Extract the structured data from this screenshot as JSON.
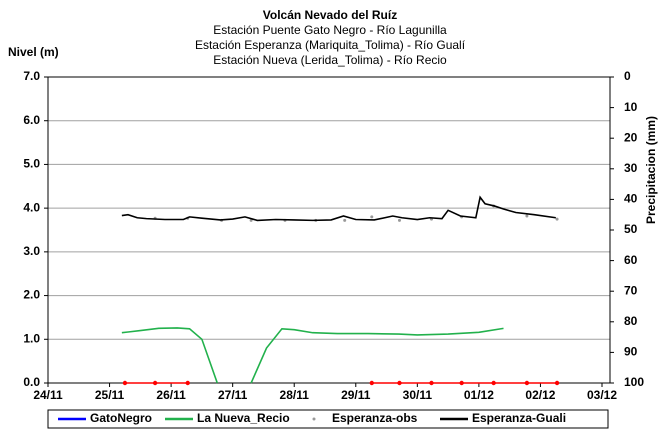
{
  "chart_data": {
    "type": "line",
    "title": "Volcán Nevado del Ruíz",
    "subtitle": [
      "Estación Puente Gato Negro - Río Lagunilla",
      "Estación Esperanza (Mariquita_Tolima) - Río Gualí",
      "Estación Nueva (Lerida_Tolima) - Río Recio"
    ],
    "y_label": "Nivel (m)",
    "y2_label": "Precipitacion (mm)",
    "xlim": [
      0,
      9.13
    ],
    "xticks": [
      {
        "value": 0,
        "label": "24/11"
      },
      {
        "value": 1,
        "label": "25/11"
      },
      {
        "value": 2,
        "label": "26/11"
      },
      {
        "value": 3,
        "label": "27/11"
      },
      {
        "value": 4,
        "label": "28/11"
      },
      {
        "value": 5,
        "label": "29/11"
      },
      {
        "value": 6,
        "label": "30/11"
      },
      {
        "value": 7,
        "label": "01/12"
      },
      {
        "value": 8,
        "label": "02/12"
      },
      {
        "value": 9,
        "label": "03/12"
      }
    ],
    "ylim": [
      0,
      7
    ],
    "yticks": [
      {
        "value": 0,
        "label": "0.0"
      },
      {
        "value": 1,
        "label": "1.0"
      },
      {
        "value": 2,
        "label": "2.0"
      },
      {
        "value": 3,
        "label": "3.0"
      },
      {
        "value": 4,
        "label": "4.0"
      },
      {
        "value": 5,
        "label": "5.0"
      },
      {
        "value": 6,
        "label": "6.0"
      },
      {
        "value": 7,
        "label": "7.0"
      }
    ],
    "y2lim": [
      100,
      0
    ],
    "y2ticks": [
      0,
      10,
      20,
      30,
      40,
      50,
      60,
      70,
      80,
      90,
      100
    ],
    "grid": true,
    "legend": "bottom",
    "series": [
      {
        "name": "GatoNegro",
        "color": "#0000ff",
        "style": "line",
        "x": [],
        "values": []
      },
      {
        "name": "La Nueva_Recio",
        "color": "#22b14c",
        "style": "line",
        "x": [
          1.2,
          1.5,
          1.8,
          2.1,
          2.3,
          2.5,
          2.75,
          null,
          3.3,
          3.55,
          3.8,
          4.0,
          4.3,
          4.7,
          5.2,
          5.7,
          6.0,
          6.5,
          7.0,
          7.4
        ],
        "values": [
          1.15,
          1.2,
          1.25,
          1.26,
          1.24,
          1.0,
          0,
          null,
          0,
          0.8,
          1.24,
          1.22,
          1.15,
          1.13,
          1.13,
          1.12,
          1.1,
          1.12,
          1.16,
          1.25
        ]
      },
      {
        "name": "Esperanza-obs",
        "color": "#999999",
        "style": "dots",
        "x": [
          1.74,
          2.27,
          2.82,
          3.3,
          3.85,
          4.35,
          4.82,
          5.26,
          5.71,
          6.23,
          6.72,
          7.24,
          7.78,
          8.27
        ],
        "values": [
          3.77,
          3.77,
          3.72,
          3.72,
          3.72,
          3.72,
          3.72,
          3.8,
          3.72,
          3.75,
          3.8,
          4.05,
          3.82,
          3.75
        ]
      },
      {
        "name": "Esperanza-Guali",
        "color": "#000000",
        "style": "line",
        "x": [
          1.2,
          1.3,
          1.45,
          1.6,
          1.9,
          2.2,
          2.3,
          2.5,
          2.8,
          3.0,
          3.2,
          3.4,
          3.7,
          4.0,
          4.3,
          4.6,
          4.8,
          5.0,
          5.3,
          5.6,
          5.75,
          6.0,
          6.2,
          6.4,
          6.5,
          6.7,
          6.95,
          7.02,
          7.1,
          7.25,
          7.4,
          7.6,
          7.9,
          8.25
        ],
        "values": [
          3.83,
          3.85,
          3.78,
          3.76,
          3.74,
          3.74,
          3.8,
          3.77,
          3.73,
          3.75,
          3.8,
          3.72,
          3.74,
          3.73,
          3.72,
          3.73,
          3.82,
          3.74,
          3.73,
          3.82,
          3.78,
          3.74,
          3.78,
          3.76,
          3.95,
          3.82,
          3.78,
          4.25,
          4.1,
          4.05,
          3.98,
          3.9,
          3.85,
          3.78
        ]
      },
      {
        "color": "#ff0000",
        "style": "linedots",
        "x": [
          1.25,
          1.74,
          2.27,
          null,
          5.26,
          5.71,
          6.23,
          6.72,
          7.24,
          7.78,
          8.27
        ],
        "values": [
          0,
          0,
          0,
          null,
          0,
          0,
          0,
          0,
          0,
          0,
          0
        ]
      }
    ]
  }
}
